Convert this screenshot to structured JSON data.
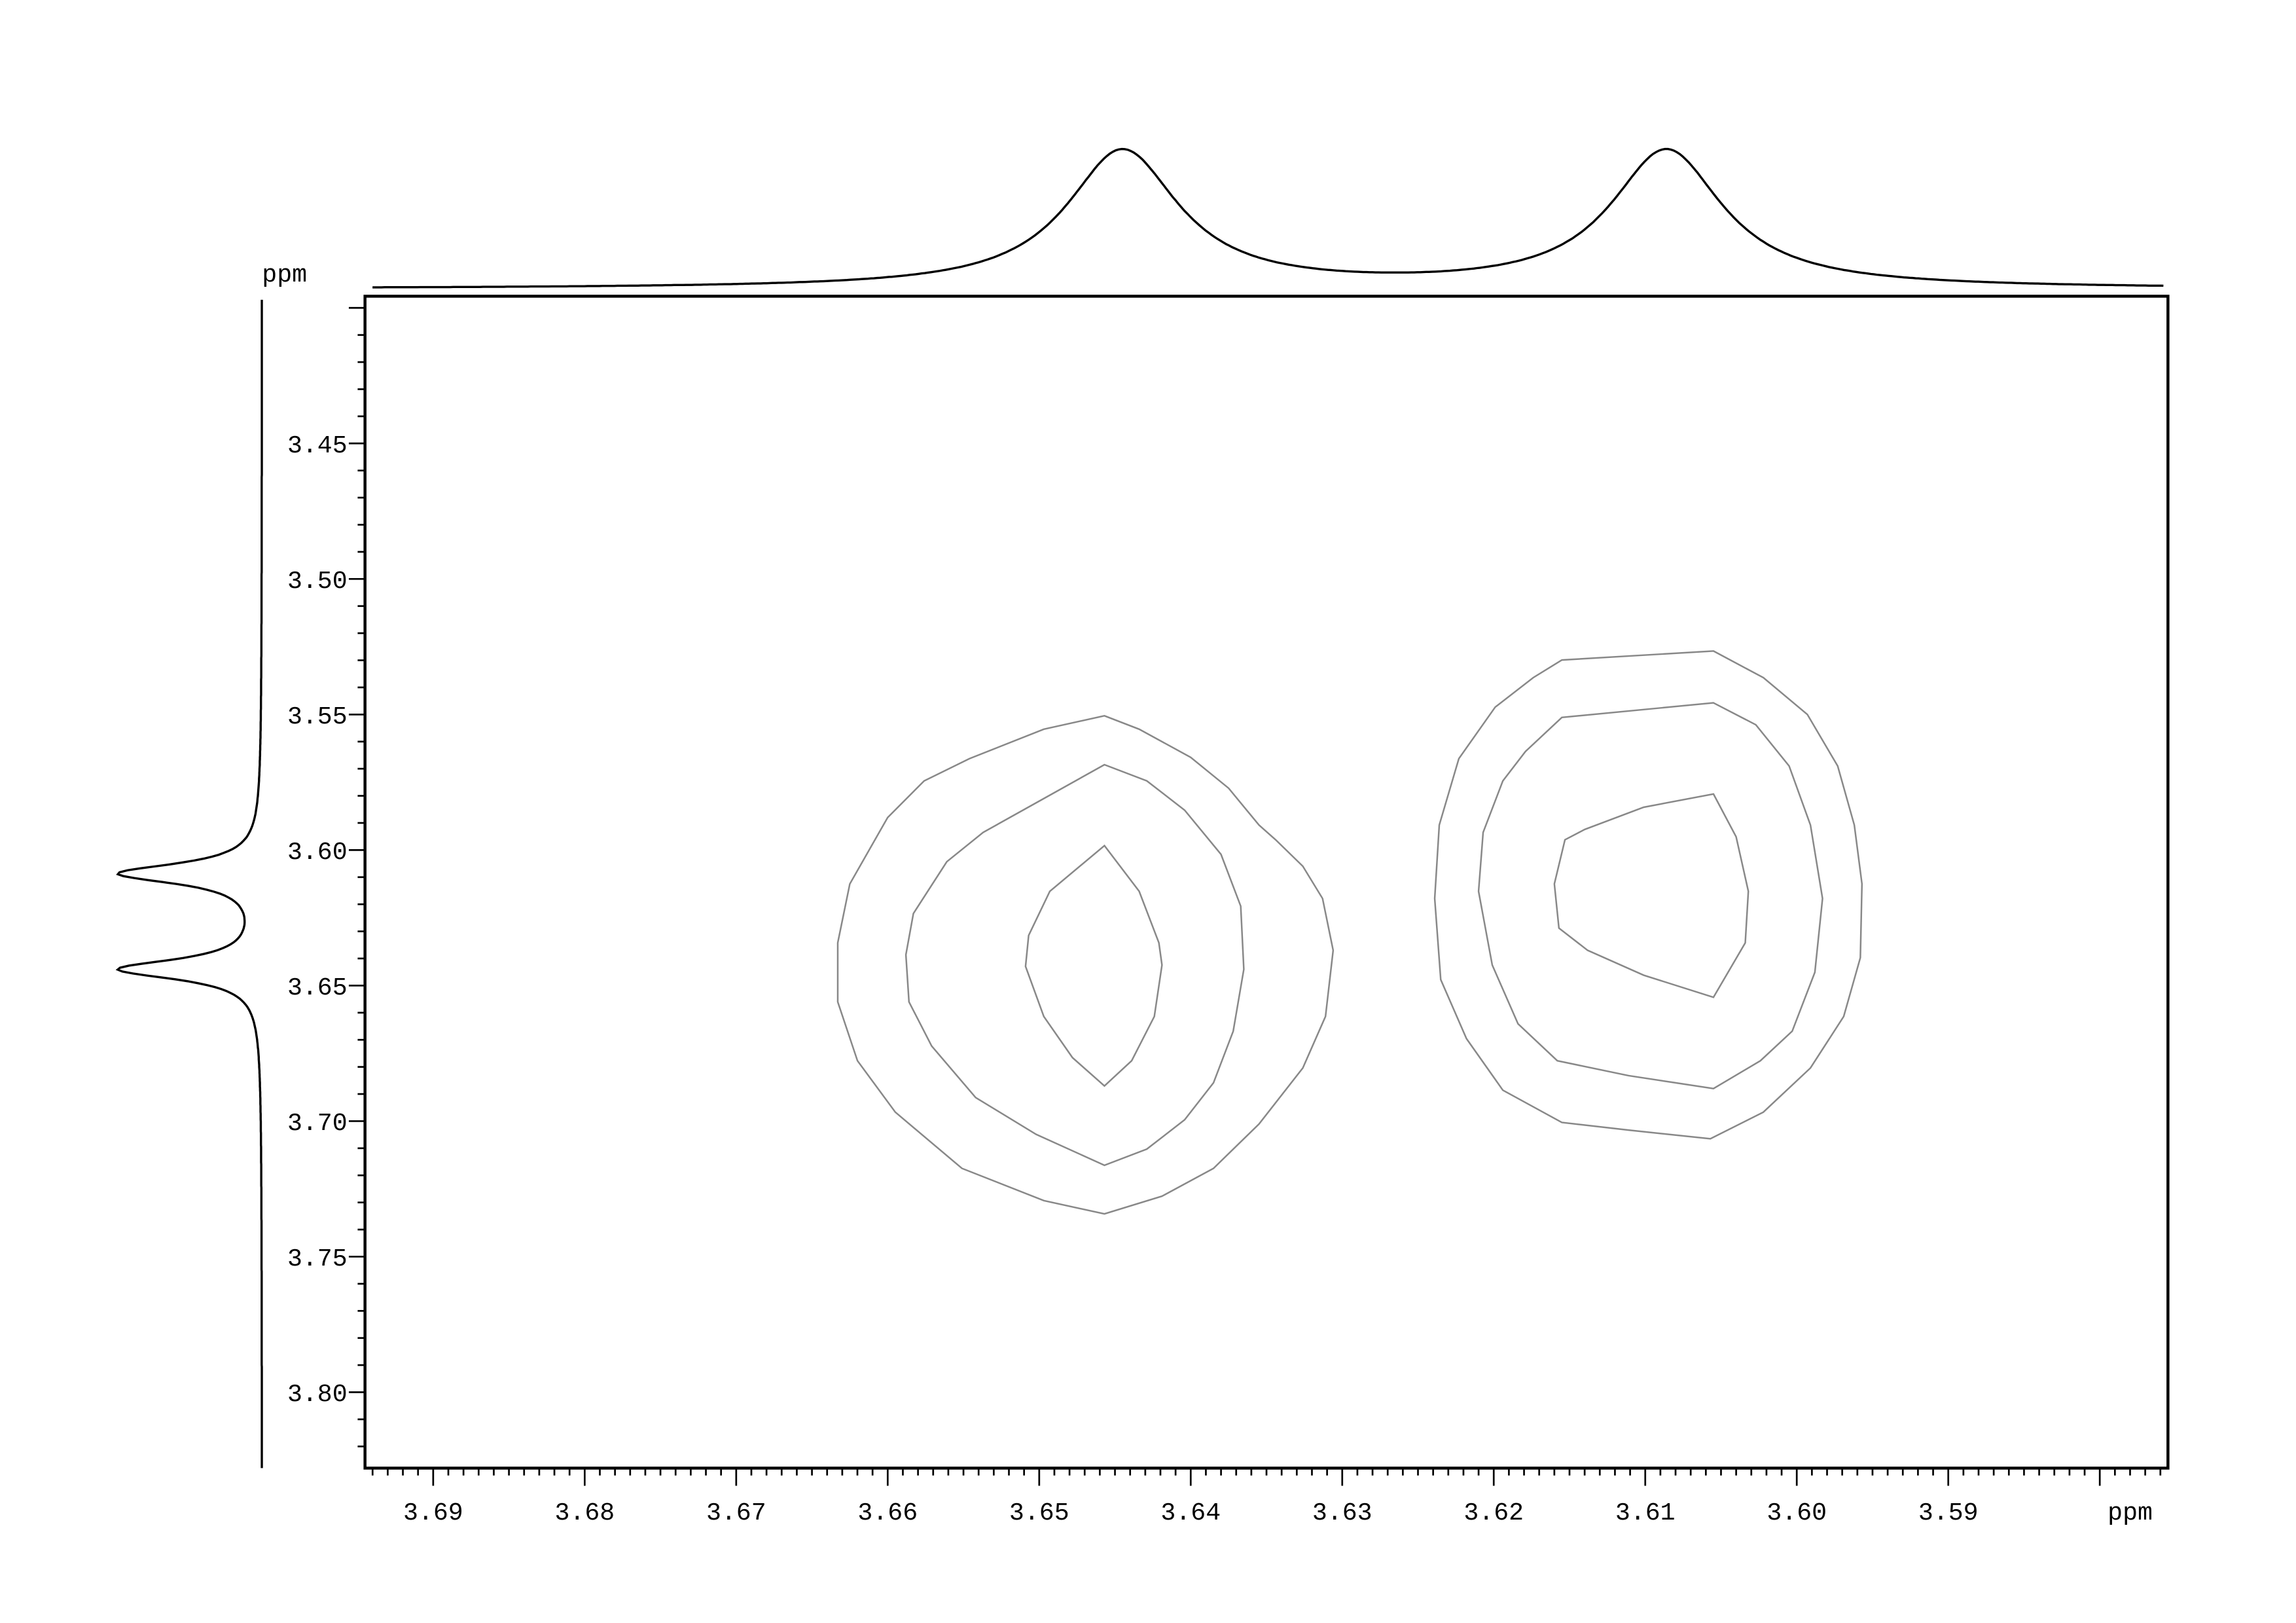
{
  "chart_data": {
    "type": "contour",
    "xlabel": "ppm",
    "ylabel": "ppm",
    "x_axis": {
      "reversed": true,
      "range": [
        3.6945,
        3.5755
      ],
      "major_step": 0.01,
      "minor_step": 0.001,
      "tick_labels": [
        "3.69",
        "3.68",
        "3.67",
        "3.66",
        "3.65",
        "3.64",
        "3.63",
        "3.62",
        "3.61",
        "3.60",
        "3.59"
      ]
    },
    "y_axis": {
      "reversed": false,
      "range": [
        3.3957,
        3.828
      ],
      "major_step": 0.05,
      "minor_step": 0.01,
      "tick_labels": [
        "3.45",
        "3.50",
        "3.55",
        "3.60",
        "3.65",
        "3.70",
        "3.75",
        "3.80"
      ]
    },
    "grid": false,
    "contour_color": "#888888",
    "line_color": "#000000",
    "top_projection": {
      "peaks_ppm": [
        3.6445,
        3.6086
      ]
    },
    "left_projection": {
      "peaks_ppm": [
        3.6087,
        3.644
      ]
    },
    "cross_peaks": [
      {
        "center": [
          3.6457,
          3.642
        ],
        "contours": [
          [
            [
              3.6457,
              3.5505
            ],
            [
              3.6434,
              3.5554
            ],
            [
              3.64,
              3.5658
            ],
            [
              3.6375,
              3.5772
            ],
            [
              3.6355,
              3.5908
            ],
            [
              3.6344,
              3.5962
            ],
            [
              3.6326,
              3.606
            ],
            [
              3.6313,
              3.6179
            ],
            [
              3.6306,
              3.637
            ],
            [
              3.6311,
              3.6614
            ],
            [
              3.6326,
              3.6804
            ],
            [
              3.6355,
              3.7011
            ],
            [
              3.6385,
              3.7174
            ],
            [
              3.6419,
              3.7277
            ],
            [
              3.6457,
              3.7342
            ],
            [
              3.6497,
              3.7293
            ],
            [
              3.6551,
              3.7174
            ],
            [
              3.6595,
              3.6967
            ],
            [
              3.662,
              3.6777
            ],
            [
              3.6633,
              3.656
            ],
            [
              3.6633,
              3.6342
            ],
            [
              3.6625,
              3.6125
            ],
            [
              3.66,
              3.588
            ],
            [
              3.6576,
              3.5745
            ],
            [
              3.6546,
              3.5663
            ],
            [
              3.6497,
              3.5554
            ]
          ],
          [
            [
              3.6457,
              3.5685
            ],
            [
              3.6429,
              3.5745
            ],
            [
              3.6404,
              3.5853
            ],
            [
              3.638,
              3.6016
            ],
            [
              3.6367,
              3.6207
            ],
            [
              3.6365,
              3.644
            ],
            [
              3.6372,
              3.6668
            ],
            [
              3.6385,
              3.6859
            ],
            [
              3.6404,
              3.6995
            ],
            [
              3.6429,
              3.7103
            ],
            [
              3.6457,
              3.7163
            ],
            [
              3.6502,
              3.7049
            ],
            [
              3.6542,
              3.6913
            ],
            [
              3.6571,
              3.6723
            ],
            [
              3.6586,
              3.656
            ],
            [
              3.6588,
              3.6386
            ],
            [
              3.6583,
              3.6234
            ],
            [
              3.6561,
              3.6043
            ],
            [
              3.6537,
              3.5935
            ],
            [
              3.6502,
              3.5826
            ]
          ],
          [
            [
              3.6457,
              3.5984
            ],
            [
              3.6434,
              3.6152
            ],
            [
              3.6421,
              3.6342
            ],
            [
              3.6419,
              3.6424
            ],
            [
              3.6424,
              3.6614
            ],
            [
              3.6439,
              3.6777
            ],
            [
              3.6457,
              3.687
            ],
            [
              3.6478,
              3.6766
            ],
            [
              3.6497,
              3.6614
            ],
            [
              3.6509,
              3.6429
            ],
            [
              3.6507,
              3.6315
            ],
            [
              3.6493,
              3.6152
            ]
          ]
        ]
      },
      {
        "center": [
          3.6055,
          3.615
        ],
        "contours": [
          [
            [
              3.6055,
              3.5266
            ],
            [
              3.6022,
              3.5364
            ],
            [
              3.5993,
              3.55
            ],
            [
              3.5973,
              3.569
            ],
            [
              3.5962,
              3.5908
            ],
            [
              3.5957,
              3.6125
            ],
            [
              3.5958,
              3.6397
            ],
            [
              3.5969,
              3.6614
            ],
            [
              3.5991,
              3.6804
            ],
            [
              3.6022,
              3.6967
            ],
            [
              3.6057,
              3.7065
            ],
            [
              3.6111,
              3.7033
            ],
            [
              3.6155,
              3.7005
            ],
            [
              3.6194,
              3.6886
            ],
            [
              3.6218,
              3.6696
            ],
            [
              3.6235,
              3.6478
            ],
            [
              3.6239,
              3.6179
            ],
            [
              3.6236,
              3.5908
            ],
            [
              3.6223,
              3.5663
            ],
            [
              3.6199,
              3.5473
            ],
            [
              3.6174,
              3.5364
            ],
            [
              3.6155,
              3.5299
            ]
          ],
          [
            [
              3.6055,
              3.5457
            ],
            [
              3.6027,
              3.5538
            ],
            [
              3.6005,
              3.569
            ],
            [
              3.5991,
              3.5908
            ],
            [
              3.5983,
              3.6179
            ],
            [
              3.5988,
              3.6451
            ],
            [
              3.6003,
              3.6668
            ],
            [
              3.6024,
              3.6777
            ],
            [
              3.6055,
              3.688
            ],
            [
              3.6111,
              3.6832
            ],
            [
              3.6158,
              3.6777
            ],
            [
              3.6184,
              3.6641
            ],
            [
              3.6201,
              3.6424
            ],
            [
              3.621,
              3.6152
            ],
            [
              3.6207,
              3.5935
            ],
            [
              3.6194,
              3.5745
            ],
            [
              3.6179,
              3.5636
            ],
            [
              3.6155,
              3.5511
            ]
          ],
          [
            [
              3.6055,
              3.5793
            ],
            [
              3.604,
              3.5951
            ],
            [
              3.6032,
              3.6152
            ],
            [
              3.6034,
              3.6342
            ],
            [
              3.6055,
              3.6543
            ],
            [
              3.6101,
              3.6462
            ],
            [
              3.6138,
              3.637
            ],
            [
              3.6157,
              3.6288
            ],
            [
              3.616,
              3.6125
            ],
            [
              3.6153,
              3.5962
            ],
            [
              3.614,
              3.5924
            ],
            [
              3.6101,
              3.5842
            ]
          ]
        ]
      }
    ]
  }
}
